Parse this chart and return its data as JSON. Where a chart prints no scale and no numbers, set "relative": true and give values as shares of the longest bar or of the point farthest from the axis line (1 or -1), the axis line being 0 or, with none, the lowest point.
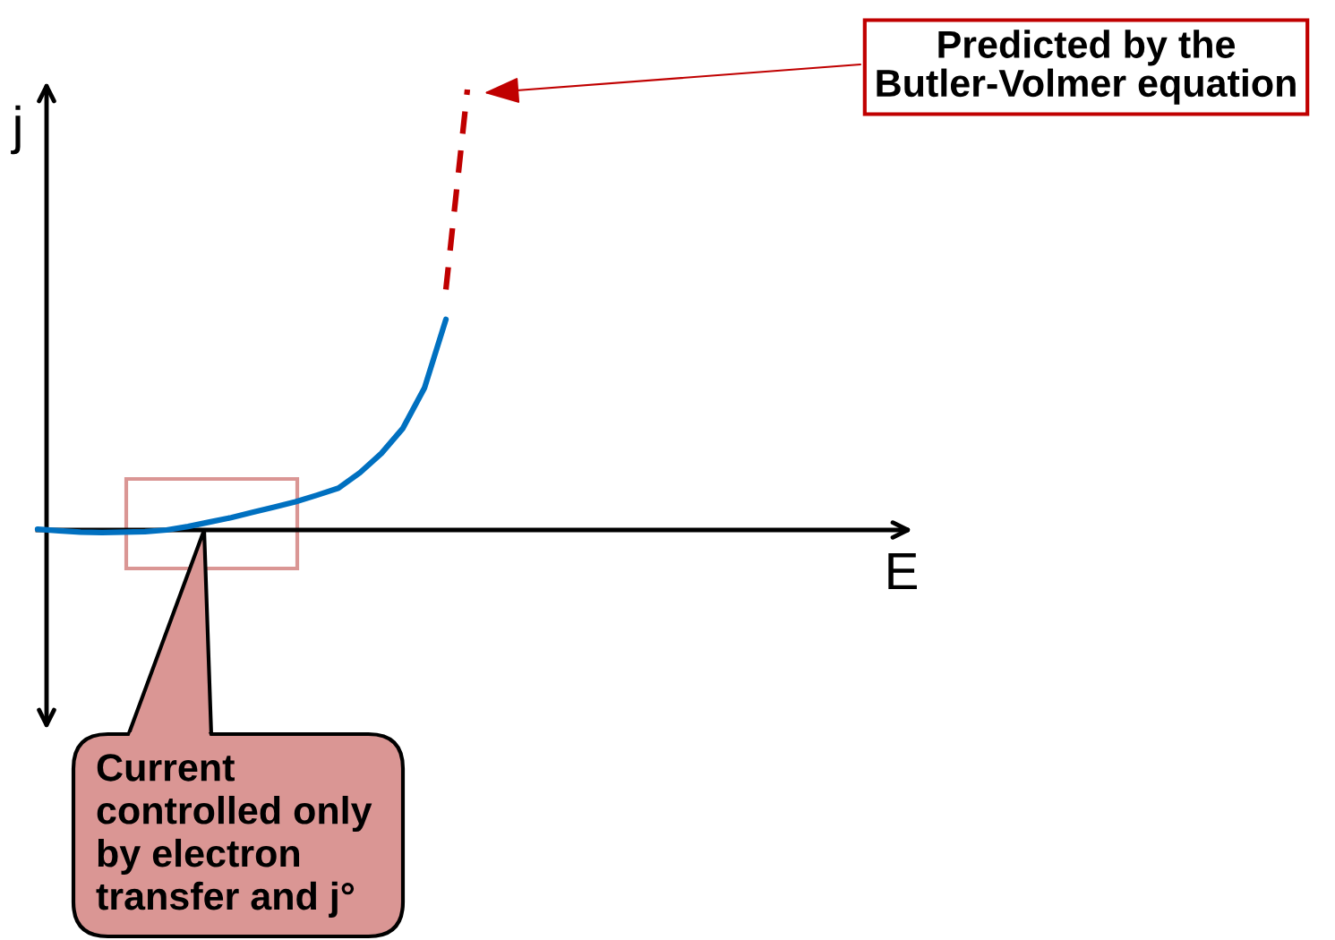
{
  "chart_data": {
    "type": "line",
    "relative": true,
    "ylabel": "j",
    "categories": [
      null,
      null,
      null,
      null,
      null,
      null,
      null,
      null,
      null,
      null,
      null,
      null,
      null,
      null,
      null,
      null,
      null,
      null,
      null,
      null,
      null
    ],
    "series": [
      {
        "color": "#0070c0",
        "line_style": "solid",
        "values": [
          0.002,
          -0.002,
          -0.005,
          -0.006,
          -0.005,
          -0.004,
          0.0,
          0.008,
          0.018,
          0.028,
          0.04,
          0.052,
          0.064,
          0.079,
          0.095,
          0.13,
          0.174,
          0.231,
          0.322,
          0.478,
          null
        ]
      },
      {
        "color": "#c00000",
        "line_style": "dashed",
        "values": [
          null,
          null,
          null,
          null,
          null,
          null,
          null,
          null,
          null,
          null,
          null,
          null,
          null,
          null,
          null,
          null,
          null,
          null,
          null,
          0.546,
          1.0
        ]
      }
    ],
    "annotations": [
      "E",
      "Predicted by the\nButler-Volmer equation",
      "Current\ncontrolled only\nby electron\ntransfer and j°"
    ]
  }
}
